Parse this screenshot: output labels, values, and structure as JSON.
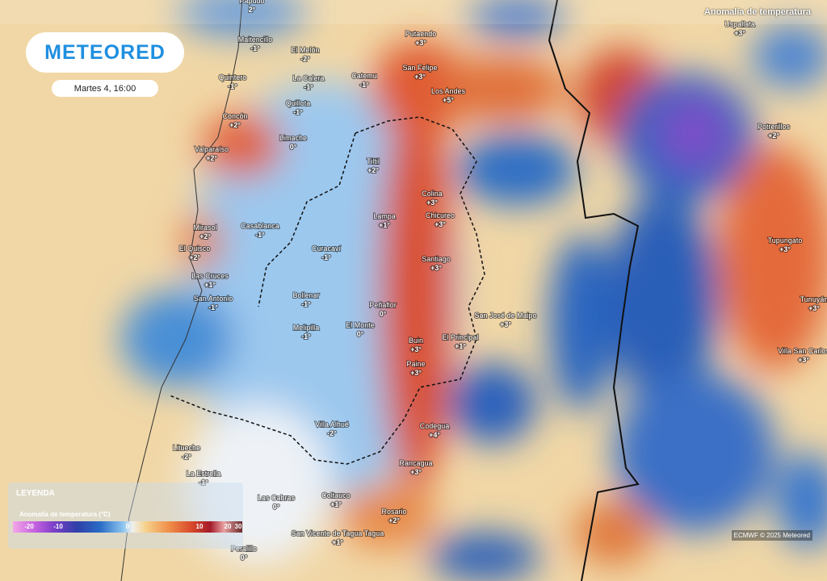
{
  "header": {
    "logo": "METEORED",
    "datetime": "Martes 4, 16:00",
    "layer": "Anomalía de temperatura"
  },
  "places": [
    {
      "name": "Papudo",
      "anomaly": "2°"
    },
    {
      "name": "Maitencillo",
      "anomaly": "-1°"
    },
    {
      "name": "El Melón",
      "anomaly": "-2°"
    },
    {
      "name": "Putaendo",
      "anomaly": "+3°"
    },
    {
      "name": "Uspallata",
      "anomaly": "+3°"
    },
    {
      "name": "Quintero",
      "anomaly": "-1°"
    },
    {
      "name": "La Calera",
      "anomaly": "-1°"
    },
    {
      "name": "Catemu",
      "anomaly": "-1°"
    },
    {
      "name": "San Felipe",
      "anomaly": "+3°"
    },
    {
      "name": "Los Andes",
      "anomaly": "+5°"
    },
    {
      "name": "Quillota",
      "anomaly": "-1°"
    },
    {
      "name": "Concón",
      "anomaly": "+2°"
    },
    {
      "name": "Limache",
      "anomaly": "0°"
    },
    {
      "name": "Potrerillos",
      "anomaly": "+2°"
    },
    {
      "name": "Valparaíso",
      "anomaly": "+2°"
    },
    {
      "name": "Tiltil",
      "anomaly": "+2°"
    },
    {
      "name": "Colina",
      "anomaly": "+3°"
    },
    {
      "name": "Lampa",
      "anomaly": "+1°"
    },
    {
      "name": "Chicureo",
      "anomaly": "+3°"
    },
    {
      "name": "Casablanca",
      "anomaly": "-1°"
    },
    {
      "name": "Mirasol",
      "anomaly": "+2°"
    },
    {
      "name": "Tupungato",
      "anomaly": "+3°"
    },
    {
      "name": "El Quisco",
      "anomaly": "+2°"
    },
    {
      "name": "Curacaví",
      "anomaly": "-1°"
    },
    {
      "name": "Santiago",
      "anomaly": "+3°"
    },
    {
      "name": "Las Cruces",
      "anomaly": "+1°"
    },
    {
      "name": "Bollenar",
      "anomaly": "-1°"
    },
    {
      "name": "San Antonio",
      "anomaly": "-1°"
    },
    {
      "name": "Tunuyán",
      "anomaly": "+3°"
    },
    {
      "name": "Peñaflor",
      "anomaly": "0°"
    },
    {
      "name": "San José de Maipo",
      "anomaly": "+3°"
    },
    {
      "name": "Melipilla",
      "anomaly": "-1°"
    },
    {
      "name": "El Monte",
      "anomaly": "0°"
    },
    {
      "name": "El Principal",
      "anomaly": "+1°"
    },
    {
      "name": "Buin",
      "anomaly": "+3°"
    },
    {
      "name": "Villa San Carlos",
      "anomaly": "+3°"
    },
    {
      "name": "Paine",
      "anomaly": "+3°"
    },
    {
      "name": "Villa Alhué",
      "anomaly": "-2°"
    },
    {
      "name": "Codegua",
      "anomaly": "+4°"
    },
    {
      "name": "Litueche",
      "anomaly": "-2°"
    },
    {
      "name": "Rancagua",
      "anomaly": "+3°"
    },
    {
      "name": "La Estrella",
      "anomaly": "-1°"
    },
    {
      "name": "Coltauco",
      "anomaly": "+1°"
    },
    {
      "name": "Las Cabras",
      "anomaly": "0°"
    },
    {
      "name": "Rosario",
      "anomaly": "+2°"
    },
    {
      "name": "San Vicente de Tagua Tagua",
      "anomaly": "+1°"
    },
    {
      "name": "Peralillo",
      "anomaly": "0°"
    }
  ],
  "legend": {
    "title": "LEYENDA",
    "subtitle": "Anomalía de temperatura (°C)",
    "ticks": [
      "-20",
      "-10",
      "0",
      "10",
      "20",
      "30"
    ]
  },
  "credit": "ECMWF © 2025 Meteored"
}
